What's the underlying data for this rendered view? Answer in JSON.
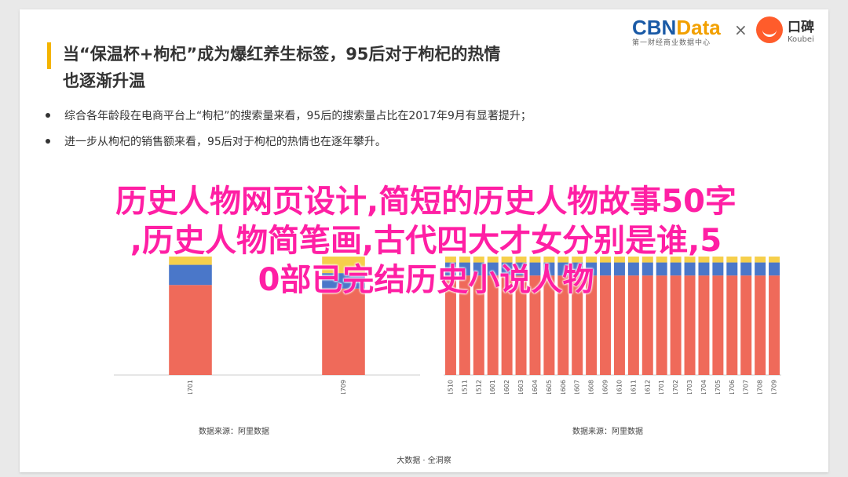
{
  "headline": {
    "line1": "当“保温杯+枸杞”成为爆红养生标签，95后对于枸杞的热情",
    "line2": "也逐渐升温"
  },
  "logos": {
    "cbn_part1": "CBN",
    "cbn_part2": "Data",
    "cbn_sub": "第一财经商业数据中心",
    "times": "×",
    "koubei_cn": "口碑",
    "koubei_en": "Koubei"
  },
  "bullets": [
    "综合各年龄段在电商平台上“枸杞”的搜索量来看，95后的搜索量占比在2017年9月有显著提升；",
    "进一步从枸杞的销售额来看，95后对于枸杞的热情也在逐年攀升。"
  ],
  "chart_data": [
    {
      "type": "bar",
      "stacked": true,
      "categories": [
        "201701",
        "201709"
      ],
      "series": [
        {
          "color": "#ef6a5a",
          "values": [
            0.76,
            0.73
          ]
        },
        {
          "color": "#4a77c9",
          "values": [
            0.17,
            0.13
          ]
        },
        {
          "color": "#f6cf4b",
          "values": [
            0.07,
            0.14
          ]
        }
      ],
      "ylim": [
        0,
        1
      ],
      "source": "数据来源：阿里数据"
    },
    {
      "type": "bar",
      "stacked": true,
      "categories": [
        "201510",
        "201511",
        "201512",
        "201601",
        "201602",
        "201603",
        "201604",
        "201605",
        "201606",
        "201607",
        "201608",
        "201609",
        "201610",
        "201611",
        "201612",
        "201701",
        "201702",
        "201703",
        "201704",
        "201705",
        "201706",
        "201707",
        "201708",
        "201709"
      ],
      "series": [
        {
          "color": "#ef6a5a",
          "values": [
            0.84,
            0.84,
            0.84,
            0.84,
            0.84,
            0.84,
            0.84,
            0.84,
            0.84,
            0.84,
            0.84,
            0.84,
            0.84,
            0.84,
            0.84,
            0.84,
            0.84,
            0.84,
            0.84,
            0.84,
            0.84,
            0.84,
            0.84,
            0.84
          ]
        },
        {
          "color": "#4a77c9",
          "values": [
            0.11,
            0.11,
            0.11,
            0.11,
            0.11,
            0.11,
            0.11,
            0.11,
            0.11,
            0.11,
            0.11,
            0.11,
            0.11,
            0.11,
            0.11,
            0.11,
            0.11,
            0.11,
            0.11,
            0.11,
            0.11,
            0.11,
            0.11,
            0.11
          ]
        },
        {
          "color": "#f6cf4b",
          "values": [
            0.05,
            0.05,
            0.05,
            0.05,
            0.05,
            0.05,
            0.05,
            0.05,
            0.05,
            0.05,
            0.05,
            0.05,
            0.05,
            0.05,
            0.05,
            0.05,
            0.05,
            0.05,
            0.05,
            0.05,
            0.05,
            0.05,
            0.05,
            0.05
          ]
        }
      ],
      "ylim": [
        0,
        1
      ],
      "source": "数据来源：阿里数据"
    }
  ],
  "footer": "大数据 · 全洞察",
  "overlay": {
    "line1": "历史人物网页设计,简短的历史人物故事50字",
    "line2": ",历史人物简笔画,古代四大才女分别是谁,5",
    "line3": "0部已完结历史小说人物"
  }
}
